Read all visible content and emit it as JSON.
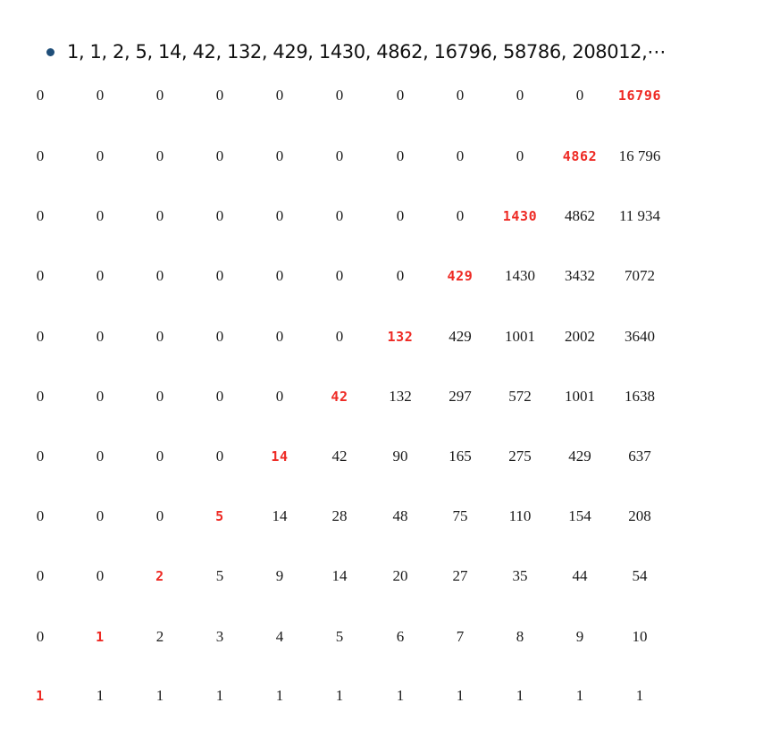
{
  "bullet": {
    "text": "1, 1, 2, 5, 14, 42, 132, 429, 1430, 4862, 16796, 58786, 208012,⋯"
  },
  "colors": {
    "highlight": "#ee2a24",
    "bullet": "#1f4e79"
  },
  "table": {
    "rows": [
      [
        "0",
        "0",
        "0",
        "0",
        "0",
        "0",
        "0",
        "0",
        "0",
        "0",
        "16796"
      ],
      [
        "0",
        "0",
        "0",
        "0",
        "0",
        "0",
        "0",
        "0",
        "0",
        "4862",
        "16 796"
      ],
      [
        "0",
        "0",
        "0",
        "0",
        "0",
        "0",
        "0",
        "0",
        "1430",
        "4862",
        "11 934"
      ],
      [
        "0",
        "0",
        "0",
        "0",
        "0",
        "0",
        "0",
        "429",
        "1430",
        "3432",
        "7072"
      ],
      [
        "0",
        "0",
        "0",
        "0",
        "0",
        "0",
        "132",
        "429",
        "1001",
        "2002",
        "3640"
      ],
      [
        "0",
        "0",
        "0",
        "0",
        "0",
        "42",
        "132",
        "297",
        "572",
        "1001",
        "1638"
      ],
      [
        "0",
        "0",
        "0",
        "0",
        "14",
        "42",
        "90",
        "165",
        "275",
        "429",
        "637"
      ],
      [
        "0",
        "0",
        "0",
        "5",
        "14",
        "28",
        "48",
        "75",
        "110",
        "154",
        "208"
      ],
      [
        "0",
        "0",
        "2",
        "5",
        "9",
        "14",
        "20",
        "27",
        "35",
        "44",
        "54"
      ],
      [
        "0",
        "1",
        "2",
        "3",
        "4",
        "5",
        "6",
        "7",
        "8",
        "9",
        "10"
      ],
      [
        "1",
        "1",
        "1",
        "1",
        "1",
        "1",
        "1",
        "1",
        "1",
        "1",
        "1"
      ]
    ]
  }
}
